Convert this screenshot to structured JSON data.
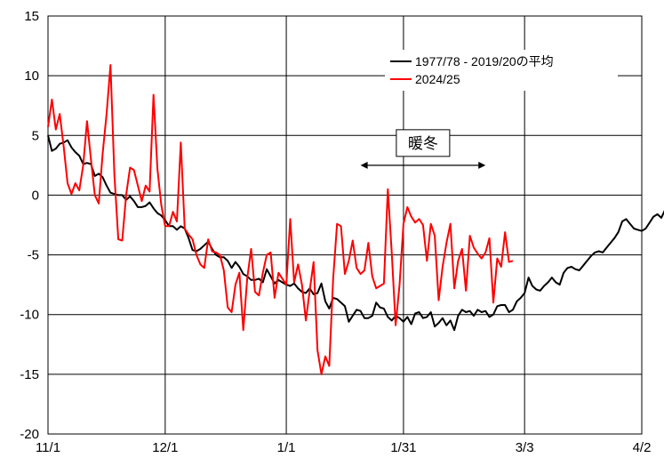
{
  "chart_data": {
    "type": "line",
    "title": "",
    "xlabel": "",
    "ylabel": "",
    "xlim": [
      "11/1",
      "4/2"
    ],
    "ylim": [
      -20,
      15
    ],
    "grid": true,
    "x_tick_labels": [
      "11/1",
      "12/1",
      "1/1",
      "1/31",
      "3/3",
      "4/2"
    ],
    "y_tick_labels": [
      "-20",
      "-15",
      "-10",
      "-5",
      "0",
      "5",
      "10",
      "15"
    ],
    "legend_position": "top-right",
    "series": [
      {
        "name": "1977/78 - 2019/20の平均",
        "color": "#000000",
        "x_start": "11/1",
        "values": [
          5.0,
          3.7,
          3.9,
          4.3,
          4.4,
          4.6,
          4.0,
          3.6,
          3.3,
          2.6,
          2.7,
          2.6,
          1.6,
          1.8,
          1.5,
          0.8,
          0.2,
          0.1,
          0.0,
          0.0,
          -0.4,
          -0.1,
          -0.5,
          -1.0,
          -1.0,
          -0.9,
          -0.6,
          -1.1,
          -1.5,
          -1.7,
          -2.1,
          -2.6,
          -2.6,
          -2.9,
          -2.6,
          -2.8,
          -3.6,
          -4.6,
          -4.7,
          -4.5,
          -4.2,
          -3.9,
          -4.5,
          -5.0,
          -5.2,
          -5.2,
          -5.5,
          -6.1,
          -5.6,
          -6.0,
          -6.6,
          -6.8,
          -7.1,
          -7.1,
          -7.0,
          -7.3,
          -6.2,
          -6.8,
          -7.4,
          -7.1,
          -7.3,
          -7.5,
          -7.6,
          -7.4,
          -7.8,
          -8.1,
          -8.2,
          -7.8,
          -8.3,
          -8.2,
          -7.4,
          -8.9,
          -9.5,
          -8.6,
          -8.7,
          -9.0,
          -9.3,
          -10.6,
          -10.1,
          -9.6,
          -9.7,
          -10.3,
          -10.3,
          -10.1,
          -9.0,
          -9.4,
          -9.5,
          -10.2,
          -10.5,
          -10.1,
          -10.3,
          -10.6,
          -10.2,
          -10.8,
          -9.9,
          -9.8,
          -10.3,
          -10.2,
          -9.8,
          -11.0,
          -10.7,
          -10.3,
          -10.9,
          -10.5,
          -11.3,
          -10.1,
          -9.6,
          -9.8,
          -9.7,
          -10.1,
          -9.6,
          -9.8,
          -9.7,
          -10.2,
          -10.0,
          -9.3,
          -9.2,
          -9.2,
          -9.8,
          -9.6,
          -8.9,
          -8.6,
          -8.2,
          -6.9,
          -7.6,
          -7.9,
          -8.0,
          -7.6,
          -7.3,
          -6.9,
          -7.3,
          -7.5,
          -6.5,
          -6.1,
          -6.0,
          -6.2,
          -6.3,
          -5.9,
          -5.5,
          -5.1,
          -4.8,
          -4.7,
          -4.8,
          -4.4,
          -4.0,
          -3.6,
          -3.1,
          -2.2,
          -2.0,
          -2.4,
          -2.8,
          -2.9,
          -3.0,
          -2.8,
          -2.3,
          -1.8,
          -1.6,
          -1.9,
          -1.2,
          -1.3,
          -1.1,
          -0.8
        ]
      },
      {
        "name": "2024/25",
        "color": "#ff0000",
        "x_start": "11/1",
        "values": [
          5.7,
          8.0,
          5.5,
          6.8,
          4.1,
          1.0,
          0.1,
          1.0,
          0.4,
          2.5,
          6.2,
          3.0,
          0.0,
          -0.7,
          3.5,
          6.8,
          10.9,
          1.7,
          -3.7,
          -3.8,
          0.0,
          2.3,
          2.1,
          0.8,
          -0.5,
          0.8,
          0.3,
          8.4,
          2.2,
          -0.8,
          -2.6,
          -2.6,
          -1.4,
          -2.2,
          4.4,
          -2.8,
          -3.3,
          -3.7,
          -5.0,
          -5.8,
          -6.1,
          -3.7,
          -4.7,
          -4.8,
          -5.0,
          -6.3,
          -9.4,
          -9.8,
          -7.5,
          -6.5,
          -11.3,
          -7.0,
          -4.5,
          -8.1,
          -8.4,
          -6.5,
          -5.0,
          -4.8,
          -8.6,
          -6.5,
          -7.0,
          -7.5,
          -2.0,
          -7.3,
          -5.8,
          -7.5,
          -10.5,
          -8.0,
          -5.6,
          -13.0,
          -15.0,
          -13.5,
          -14.3,
          -7.0,
          -2.4,
          -2.6,
          -6.6,
          -5.5,
          -3.8,
          -6.1,
          -6.6,
          -6.3,
          -4.0,
          -6.8,
          -7.8,
          -7.6,
          -7.4,
          0.5,
          -4.8,
          -10.9,
          -7.5,
          -2.4,
          -1.0,
          -1.8,
          -2.3,
          -2.0,
          -2.5,
          -5.5,
          -2.4,
          -3.4,
          -8.8,
          -6.0,
          -4.0,
          -2.4,
          -7.8,
          -5.5,
          -4.5,
          -8.0,
          -3.4,
          -4.4,
          -4.9,
          -5.3,
          -4.8,
          -3.6,
          -9.0,
          -5.3,
          -6.0,
          -3.1,
          -5.6,
          -5.5
        ]
      }
    ],
    "annotations": [
      {
        "text": "暖冬",
        "x_from": "1/20",
        "x_to": "2/21",
        "y": 2.5,
        "arrow": "double"
      }
    ]
  }
}
